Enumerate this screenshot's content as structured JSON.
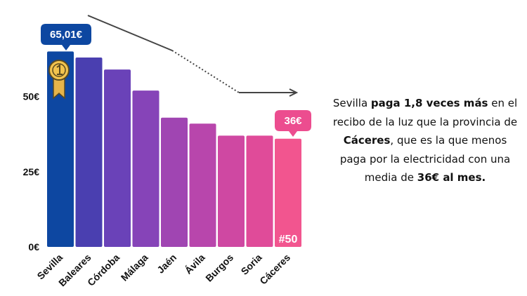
{
  "chart_data": {
    "type": "bar",
    "categories": [
      "Sevilla",
      "Baleares",
      "Córdoba",
      "Málaga",
      "Jaén",
      "Ávila",
      "Burgos",
      "Soria",
      "Cáceres"
    ],
    "values": [
      65.01,
      63,
      59,
      52,
      43,
      41,
      37,
      37,
      36
    ],
    "ylim": [
      0,
      70
    ],
    "yticks": [
      {
        "value": 0,
        "label": "0€"
      },
      {
        "value": 25,
        "label": "25€"
      },
      {
        "value": 50,
        "label": "50€"
      }
    ],
    "grid": false,
    "colors": [
      "#0d47a1",
      "#4a3fb0",
      "#6a42b8",
      "#8644b8",
      "#a045b2",
      "#b846ac",
      "#cf48a2",
      "#e04b99",
      "#f2558f"
    ],
    "callouts": [
      {
        "category": "Sevilla",
        "label": "65,01€",
        "color": "#0d47a1"
      },
      {
        "category": "Cáceres",
        "label": "36€",
        "color": "#ec4d8f"
      }
    ],
    "rank_label": "#50",
    "icons": [
      "first-place-medal-icon",
      "trend-arrow-icon"
    ]
  },
  "description": {
    "p1": "Sevilla ",
    "b1": "paga 1,8 veces más",
    "p2": " en el recibo de la luz que la provincia de ",
    "b2": "Cáceres",
    "p3": ", que es la que menos paga por la electricidad con una media de ",
    "b3": "36€ al mes."
  }
}
